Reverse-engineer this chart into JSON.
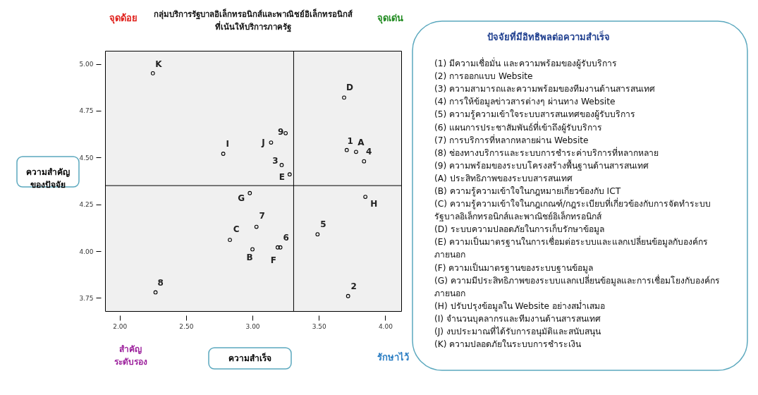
{
  "chart_data": {
    "type": "scatter",
    "title": "กลุ่มบริการรัฐบาลอิเล็กทรอนิกส์และพาณิชย์อิเล็กทรอนิกส์\nที่เน้นให้บริการภาครัฐ",
    "xlabel": "ความสำเร็จ",
    "ylabel": "ความสำคัญ\nของปัจจัย",
    "x": [
      3.71,
      3.72,
      3.22,
      3.84,
      3.49,
      3.21,
      3.03,
      2.27,
      3.25,
      3.78,
      3.0,
      2.83,
      3.69,
      3.28,
      3.19,
      2.98,
      3.85,
      2.78,
      3.14,
      2.25
    ],
    "series": [
      {
        "color": "#000000",
        "values": [
          4.54,
          3.76,
          4.46,
          4.48,
          4.09,
          4.02,
          4.13,
          3.78,
          4.63,
          4.53,
          4.01,
          4.06,
          4.82,
          4.41,
          4.02,
          4.31,
          4.29,
          4.52,
          4.58,
          4.95
        ]
      }
    ],
    "marker": "circle",
    "xlim": [
      1.89,
      4.12
    ],
    "ylim": [
      3.68,
      5.07
    ],
    "xticks": [
      {
        "value": 2,
        "label": "2.00"
      },
      {
        "value": 2.5,
        "label": "2.50"
      },
      {
        "value": 3,
        "label": "3.00"
      },
      {
        "value": 3.5,
        "label": "3.50"
      },
      {
        "value": 4,
        "label": "4.00"
      }
    ],
    "yticks": [
      {
        "value": 3.75,
        "label": "3.75"
      },
      {
        "value": 4,
        "label": "4.00"
      },
      {
        "value": 4.25,
        "label": "4.25"
      },
      {
        "value": 4.5,
        "label": "4.50"
      },
      {
        "value": 4.75,
        "label": "4.75"
      },
      {
        "value": 5,
        "label": "5.00"
      }
    ],
    "ref_lines": [
      {
        "axis": "x",
        "value": 3.31
      },
      {
        "axis": "y",
        "value": 4.35
      }
    ],
    "annotations": [
      "จุดด้อย",
      "จุดเด่น",
      "สำคัญ\nระดับรอง",
      "รักษาไว้",
      "ปัจจัยที่มีอิทธิพลต่อความสำเร็จ",
      "(1) มีความเชื่อมั่น และความพร้อมของผู้รับบริการ",
      "(2) การออกแบบ Website",
      "(3) ความสามารถและความพร้อมของทีมงานด้านสารสนเทศ",
      "(4) การให้ข้อมูลข่าวสารต่างๆ ผ่านทาง Website",
      "(5) ความรู้ความเข้าใจระบบสารสนเทศของผู้รับบริการ",
      "(6) แผนการประชาสัมพันธ์ที่เข้าถึงผู้รับบริการ",
      "(7) การบริการที่หลากหลายผ่าน Website",
      "(8) ช่องทางบริการและระบบการชำระค่าบริการที่หลากหลาย",
      "(9) ความพร้อมของระบบโครงสร้างพื้นฐานด้านสารสนเทศ",
      "(A) ประสิทธิภาพของระบบสารสนเทศ",
      "(B) ความรู้ความเข้าใจในกฎหมายเกี่ยวข้องกับ ICT",
      "(C) ความรู้ความเข้าใจในกฎเกณฑ์/กฎระเบียบที่เกี่ยวข้องกับการจัดทำระบบ\nรัฐบาลอิเล็กทรอนิกส์และพาณิชย์อิเล็กทรอนิกส์",
      "(D) ระบบความปลอดภัยในการเก็บรักษาข้อมูล",
      "(E) ความเป็นมาตรฐานในการเชื่อมต่อระบบและแลกเปลี่ยนข้อมูลกับองค์กร\nภายนอก",
      "(F) ความเป็นมาตรฐานของระบบฐานข้อมูล",
      "(G) ความมีประสิทธิภาพของระบบแลกเปลี่ยนข้อมูลและการเชื่อมโยงกับองค์กร\nภายนอก",
      "(H) ปรับปรุงข้อมูลใน Website อย่างสม่ำเสมอ",
      "(I) จำนวนบุคลากรและทีมงานด้านสารสนเทศ",
      "(J) งบประมาณที่ได้รับการอนุมัติและสนับสนุน",
      "(K) ความปลอดภัยในระบบการชำระเงิน",
      {
        "text": "1",
        "x": 3.71,
        "y": 4.54
      },
      {
        "text": "2",
        "x": 3.72,
        "y": 3.76
      },
      {
        "text": "3",
        "x": 3.22,
        "y": 4.46
      },
      {
        "text": "4",
        "x": 3.84,
        "y": 4.48
      },
      {
        "text": "5",
        "x": 3.49,
        "y": 4.09
      },
      {
        "text": "6",
        "x": 3.21,
        "y": 4.02
      },
      {
        "text": "7",
        "x": 3.03,
        "y": 4.13
      },
      {
        "text": "8",
        "x": 2.27,
        "y": 3.78
      },
      {
        "text": "9",
        "x": 3.25,
        "y": 4.63
      },
      {
        "text": "A",
        "x": 3.78,
        "y": 4.53
      },
      {
        "text": "B",
        "x": 3.0,
        "y": 4.01
      },
      {
        "text": "C",
        "x": 2.83,
        "y": 4.06
      },
      {
        "text": "D",
        "x": 3.69,
        "y": 4.82
      },
      {
        "text": "E",
        "x": 3.28,
        "y": 4.41
      },
      {
        "text": "F",
        "x": 3.19,
        "y": 4.02
      },
      {
        "text": "G",
        "x": 2.98,
        "y": 4.31
      },
      {
        "text": "H",
        "x": 3.85,
        "y": 4.29
      },
      {
        "text": "I",
        "x": 2.78,
        "y": 4.52
      },
      {
        "text": "J",
        "x": 3.14,
        "y": 4.58
      },
      {
        "text": "K",
        "x": 2.25,
        "y": 4.95
      }
    ]
  }
}
